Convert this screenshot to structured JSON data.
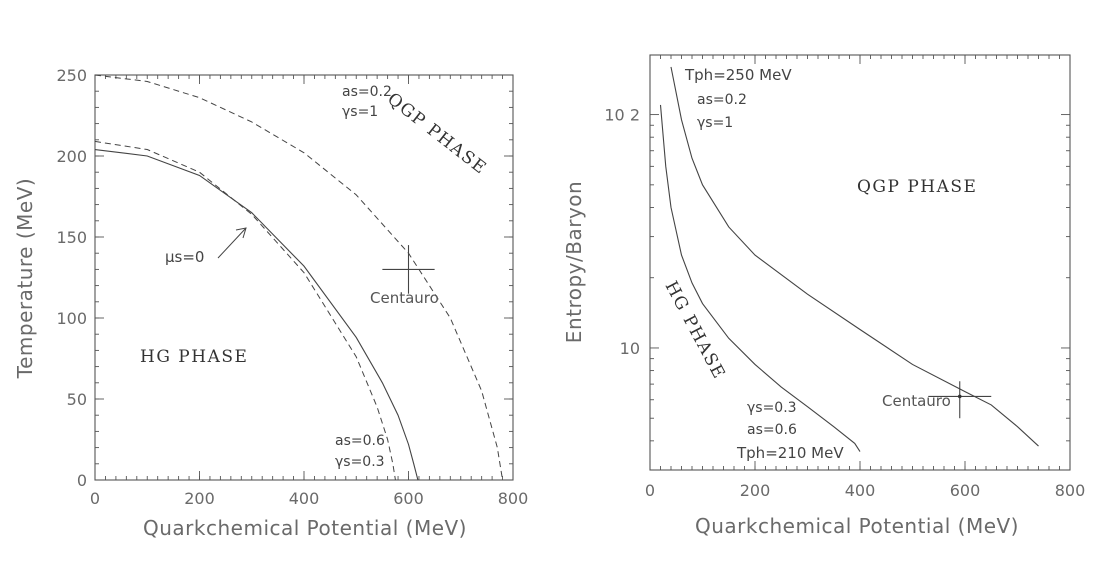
{
  "chart_data": [
    {
      "type": "line",
      "xlabel": "Quarkchemical Potential (MeV)",
      "ylabel": "Temperature (MeV)",
      "xlim": [
        0,
        800
      ],
      "ylim": [
        0,
        250
      ],
      "xticks": [
        "0",
        "200",
        "400",
        "600",
        "800"
      ],
      "yticks": [
        "0",
        "50",
        "100",
        "150",
        "200",
        "250"
      ],
      "grid": false,
      "series": [
        {
          "name": "μs=0",
          "style": "solid",
          "x": [
            0,
            100,
            200,
            300,
            400,
            500,
            550,
            580,
            600,
            610,
            618
          ],
          "y": [
            204,
            200,
            188,
            165,
            132,
            88,
            60,
            40,
            22,
            10,
            0
          ]
        },
        {
          "name": "as=0.6 γs=0.3",
          "style": "dashed",
          "x": [
            0,
            100,
            200,
            300,
            400,
            500,
            540,
            560,
            570,
            575
          ],
          "y": [
            209,
            204,
            190,
            164,
            128,
            76,
            45,
            25,
            10,
            0
          ]
        },
        {
          "name": "as=0.2 γs=1",
          "style": "dashed",
          "x": [
            0,
            100,
            200,
            300,
            400,
            500,
            600,
            680,
            740,
            770,
            780
          ],
          "y": [
            250,
            246,
            236,
            221,
            202,
            176,
            140,
            100,
            55,
            20,
            0
          ]
        }
      ],
      "points": [
        {
          "label": "Centauro",
          "x": 600,
          "y": 130,
          "xerr": 50,
          "yerr": 15
        }
      ],
      "annotations": {
        "top_curve": [
          "as=0.2",
          "γs=1"
        ],
        "bottom_curve": [
          "as=0.6",
          "γs=0.3"
        ],
        "mu_s": "μs=0",
        "phase_high": "QGP PHASE",
        "phase_low": "HG PHASE"
      }
    },
    {
      "type": "line",
      "xlabel": "Quarkchemical Potential (MeV)",
      "ylabel": "Entropy/Baryon",
      "xlim": [
        0,
        800
      ],
      "ylim": [
        3,
        180
      ],
      "yscale": "log",
      "xticks": [
        "0",
        "200",
        "400",
        "600",
        "800"
      ],
      "yticks": [
        "10",
        "10 2"
      ],
      "grid": false,
      "series": [
        {
          "name": "Tph=250 MeV as=0.2 γs=1",
          "style": "solid",
          "x": [
            40,
            60,
            80,
            100,
            150,
            200,
            300,
            400,
            500,
            600,
            650,
            700,
            740
          ],
          "y": [
            160,
            95,
            65,
            50,
            33,
            25,
            17,
            12,
            8.5,
            6.5,
            5.7,
            4.6,
            3.8
          ]
        },
        {
          "name": "γs=0.3 as=0.6 Tph=210 MeV",
          "style": "solid",
          "x": [
            20,
            30,
            40,
            60,
            80,
            100,
            150,
            200,
            250,
            300,
            350,
            390,
            400
          ],
          "y": [
            110,
            60,
            40,
            25,
            19,
            15.5,
            11,
            8.5,
            6.8,
            5.6,
            4.6,
            3.9,
            3.6
          ]
        }
      ],
      "points": [
        {
          "label": "Centauro",
          "x": 590,
          "y": 6.2,
          "xerr": 60,
          "yerr_lo": 1.2,
          "yerr_hi": 1.0
        }
      ],
      "annotations": {
        "top_curve": [
          "Tph=250 MeV",
          "as=0.2",
          "γs=1"
        ],
        "bottom_curve": [
          "γs=0.3",
          "as=0.6",
          "Tph=210 MeV"
        ],
        "phase_high": "QGP PHASE",
        "phase_low": "HG PHASE"
      }
    }
  ]
}
